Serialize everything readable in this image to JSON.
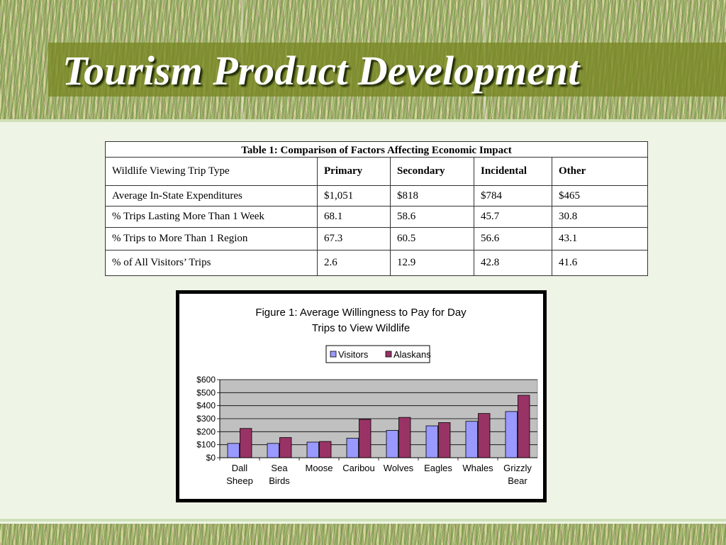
{
  "slide": {
    "title": "Tourism Product Development"
  },
  "table": {
    "caption": "Table 1: Comparison of Factors Affecting Economic Impact",
    "header": [
      "Wildlife Viewing Trip Type",
      "Primary",
      "Secondary",
      "Incidental",
      "Other"
    ],
    "rows": [
      [
        "Average In-State Expenditures",
        "$1,051",
        "$818",
        "$784",
        "$465"
      ],
      [
        "% Trips Lasting More Than 1 Week",
        "68.1",
        "58.6",
        "45.7",
        "30.8"
      ],
      [
        "% Trips to More Than 1 Region",
        "67.3",
        "60.5",
        "56.6",
        "43.1"
      ],
      [
        "% of All Visitors’ Trips",
        "2.6",
        "12.9",
        "42.8",
        "41.6"
      ]
    ]
  },
  "chart_data": {
    "type": "bar",
    "title_lines": [
      "Figure 1:   Average Willingness to Pay for Day",
      "Trips to View Wildlife"
    ],
    "categories": [
      [
        "Dall",
        "Sheep"
      ],
      [
        "Sea",
        "Birds"
      ],
      [
        "Moose"
      ],
      [
        "Caribou"
      ],
      [
        "Wolves"
      ],
      [
        "Eagles"
      ],
      [
        "Whales"
      ],
      [
        "Grizzly",
        "Bear"
      ]
    ],
    "series": [
      {
        "name": "Visitors",
        "color": "#9999ff",
        "values": [
          110,
          110,
          120,
          150,
          210,
          245,
          280,
          355
        ]
      },
      {
        "name": "Alaskans",
        "color": "#993366",
        "values": [
          225,
          155,
          125,
          295,
          310,
          270,
          340,
          480
        ]
      }
    ],
    "ylim": [
      0,
      600
    ],
    "yticks": [
      0,
      100,
      200,
      300,
      400,
      500,
      600
    ],
    "ytick_labels": [
      "$0",
      "$100",
      "$200",
      "$300",
      "$400",
      "$500",
      "$600"
    ],
    "grid": true,
    "plot_background": "#c0c0c0",
    "legend_position": "top"
  }
}
